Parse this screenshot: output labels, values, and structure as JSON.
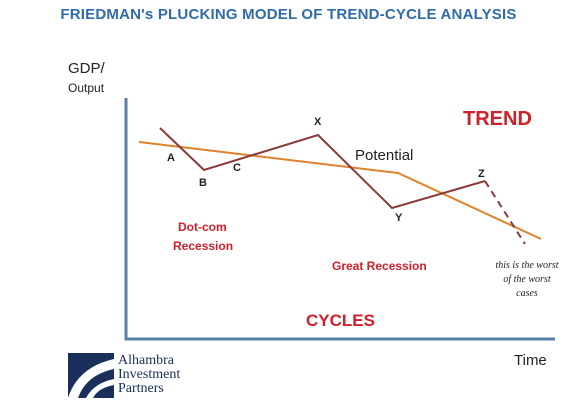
{
  "title": "FRIEDMAN's PLUCKING MODEL OF TREND-CYCLE ANALYSIS",
  "axes": {
    "y_label_main": "GDP/",
    "y_label_sub": "Output",
    "x_label": "Time"
  },
  "labels": {
    "trend": "TREND",
    "cycles": "CYCLES",
    "potential": "Potential",
    "dotcom_line1": "Dot-com",
    "dotcom_line2": "Recession",
    "great_recession": "Great Recession",
    "worst_line1": "this is the worst",
    "worst_line2": "of the worst",
    "worst_line3": "cases"
  },
  "points": {
    "a": "A",
    "b": "B",
    "c": "C",
    "x": "X",
    "y": "Y",
    "z": "Z"
  },
  "logo": {
    "line1": "Alhambra",
    "line2": "Investment",
    "line3": "Partners"
  },
  "colors": {
    "title": "#2f6bab",
    "trend_line": "#e0822a",
    "cycle_line": "#8b3a3a",
    "labels_red": "#d0202a",
    "axis": "#5a7fa8",
    "logo": "#1a2f5a"
  }
}
